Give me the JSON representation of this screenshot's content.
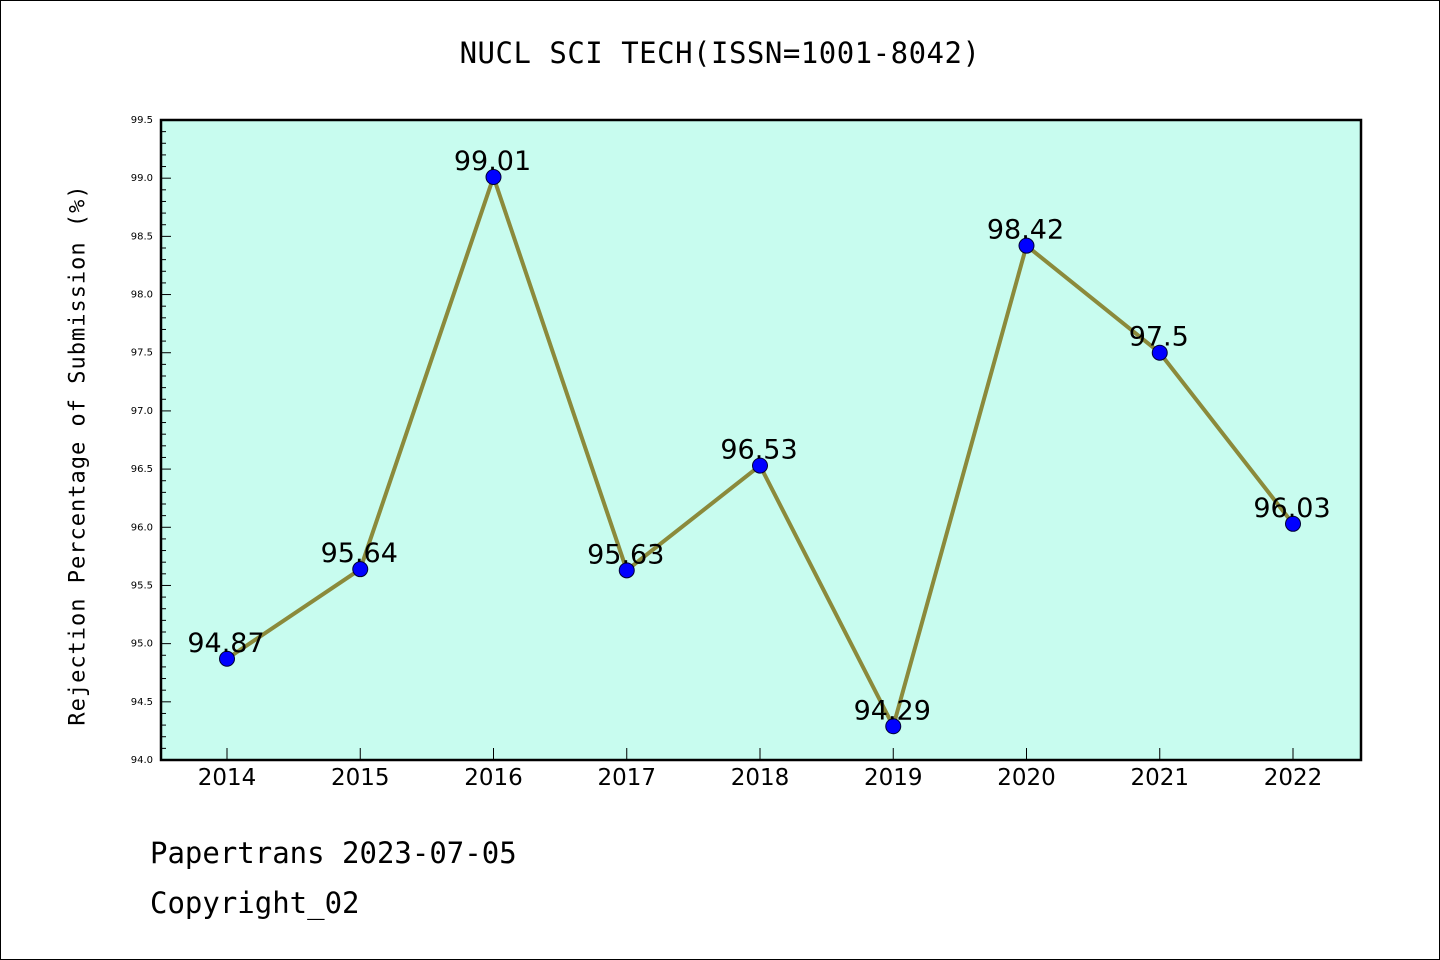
{
  "chart_data": {
    "type": "line",
    "title": "NUCL SCI TECH(ISSN=1001-8042)",
    "ylabel": "Rejection Percentage of Submission (%)",
    "xlabel": "",
    "categories": [
      "2014",
      "2015",
      "2016",
      "2017",
      "2018",
      "2019",
      "2020",
      "2021",
      "2022"
    ],
    "series": [
      {
        "values": [
          94.87,
          95.64,
          99.01,
          95.63,
          96.53,
          94.29,
          98.42,
          97.5,
          96.03
        ],
        "labels": [
          "94.87",
          "95.64",
          "99.01",
          "95.63",
          "96.53",
          "94.29",
          "98.42",
          "97.5",
          "96.03"
        ]
      }
    ],
    "ylim": [
      94.0,
      99.5
    ],
    "yticks": [
      "94.0",
      "94.5",
      "95.0",
      "95.5",
      "96.0",
      "96.5",
      "97.0",
      "97.5",
      "98.0",
      "98.5",
      "99.0",
      "99.5"
    ],
    "grid": false,
    "legend": "none",
    "colors": {
      "plot_background": "#c8fcef",
      "line": "#8b8a3b",
      "marker": "#0000ff"
    }
  },
  "footer": {
    "line1": "Papertrans 2023-07-05",
    "line2": "Copyright_02"
  }
}
